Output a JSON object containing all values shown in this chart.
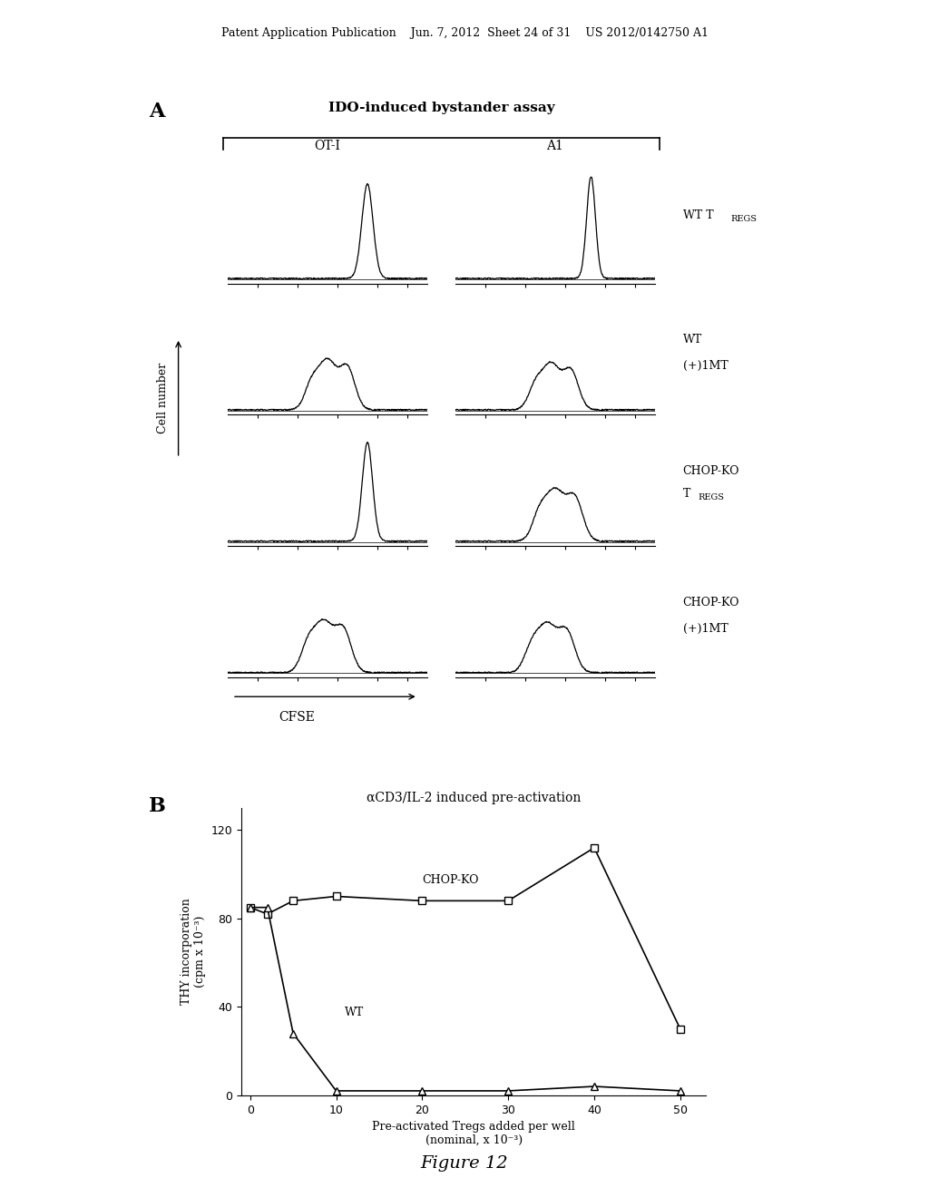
{
  "header_text": "Patent Application Publication    Jun. 7, 2012  Sheet 24 of 31    US 2012/0142750 A1",
  "panel_A_title": "IDO-induced bystander assay",
  "panel_A_label": "A",
  "panel_B_label": "B",
  "col_labels": [
    "OT-I",
    "A1"
  ],
  "xlabel_A": "CFSE",
  "ylabel_A": "Cell number",
  "panel_B_title": "αCD3/IL-2 induced pre-activation",
  "ylabel_B": "THY incorporation\n(cpm x 10⁻³)",
  "xlabel_B": "Pre-activated Tregs added per well\n(nominal, x 10⁻³)",
  "chop_ko_x": [
    0,
    2,
    5,
    10,
    20,
    30,
    40,
    50
  ],
  "chop_ko_y": [
    85,
    82,
    88,
    90,
    88,
    88,
    112,
    30
  ],
  "wt_x": [
    0,
    2,
    5,
    10,
    20,
    30,
    40,
    50
  ],
  "wt_y": [
    85,
    85,
    28,
    2,
    2,
    2,
    4,
    2
  ],
  "figure_caption": "Figure 12",
  "ylim_B": [
    0,
    130
  ],
  "yticks_B": [
    0,
    40,
    80,
    120
  ],
  "xticks_B": [
    0,
    10,
    20,
    30,
    40,
    50
  ]
}
